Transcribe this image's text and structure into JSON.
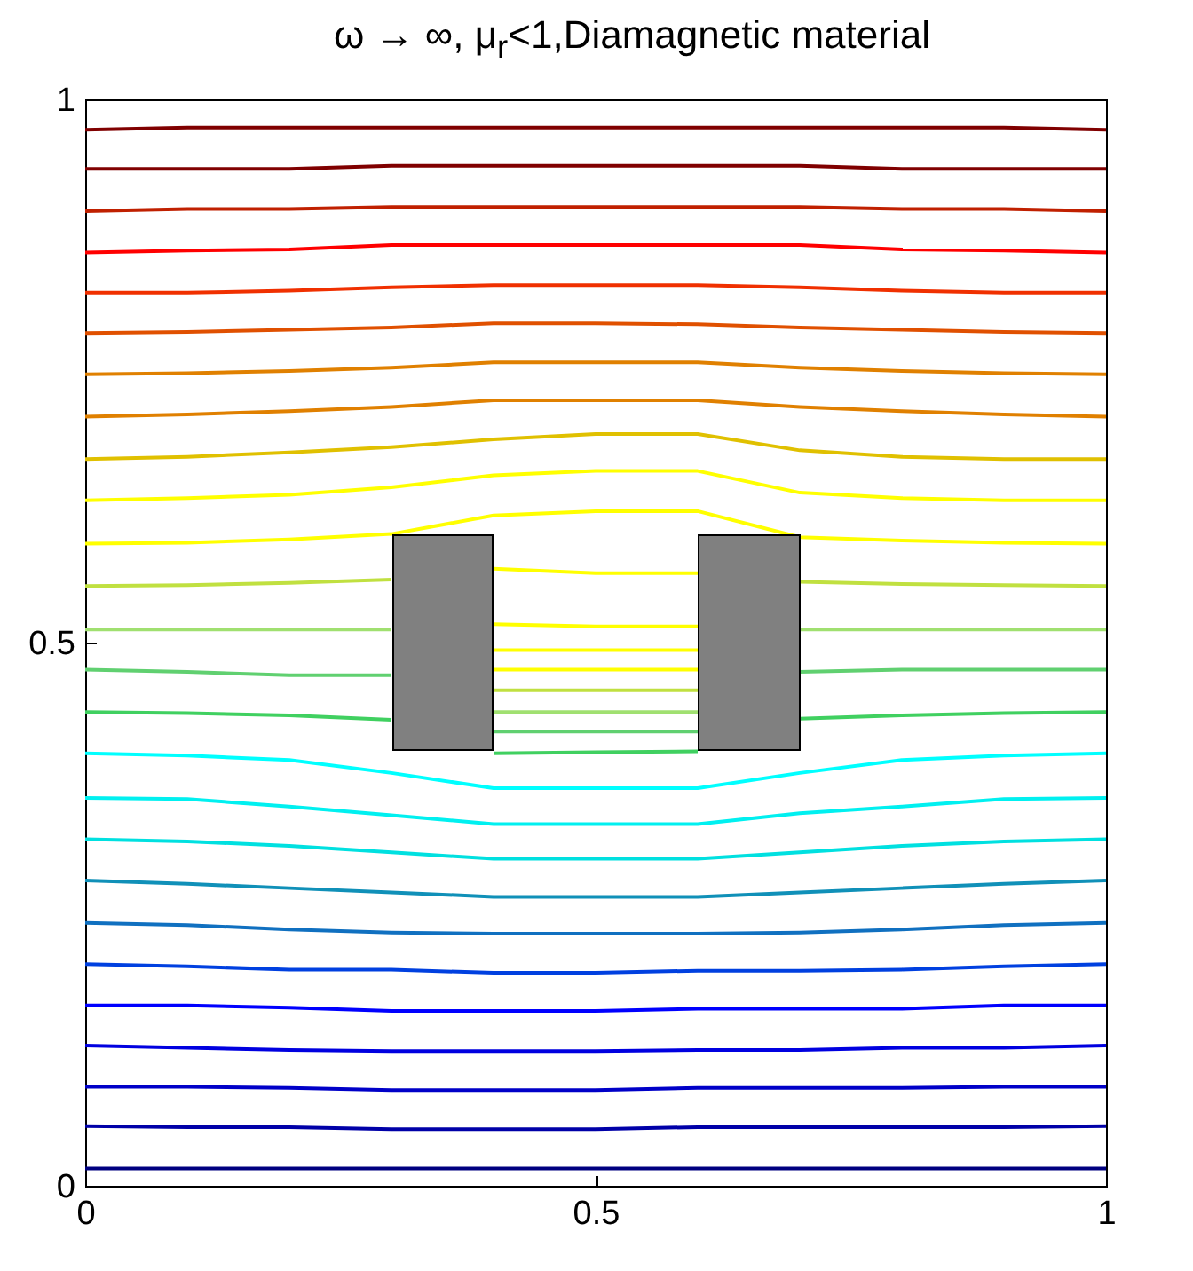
{
  "chart_data": {
    "type": "line",
    "title": "ω → ∞, μ$_{r}$<1,Diamagnetic material",
    "x": [
      0,
      0.1,
      0.2,
      0.3,
      0.4,
      0.5,
      0.6,
      0.7,
      0.8,
      0.9,
      1
    ],
    "xlim": [
      0,
      1
    ],
    "xticks": [
      0,
      0.5,
      1
    ],
    "ylim": [
      0,
      1
    ],
    "yticks": [
      0,
      0.5,
      1
    ],
    "grid": false,
    "marker": "none",
    "line_style": "solid",
    "series": [
      {
        "color": "#800000",
        "values": [
          0.972,
          0.974,
          0.974,
          0.974,
          0.974,
          0.974,
          0.974,
          0.974,
          0.974,
          0.974,
          0.972
        ]
      },
      {
        "color": "#800000",
        "values": [
          0.936,
          0.936,
          0.936,
          0.939,
          0.939,
          0.939,
          0.939,
          0.939,
          0.936,
          0.936,
          0.936
        ]
      },
      {
        "color": "#c02000",
        "values": [
          0.897,
          0.899,
          0.899,
          0.901,
          0.901,
          0.901,
          0.901,
          0.901,
          0.899,
          0.899,
          0.897
        ]
      },
      {
        "color": "#ff0000",
        "values": [
          0.859,
          0.861,
          0.862,
          0.866,
          0.866,
          0.866,
          0.866,
          0.866,
          0.862,
          0.861,
          0.859
        ]
      },
      {
        "color": "#f03000",
        "values": [
          0.822,
          0.822,
          0.824,
          0.827,
          0.829,
          0.829,
          0.829,
          0.827,
          0.824,
          0.822,
          0.822
        ]
      },
      {
        "color": "#e05000",
        "values": [
          0.785,
          0.786,
          0.788,
          0.79,
          0.794,
          0.794,
          0.793,
          0.79,
          0.788,
          0.786,
          0.785
        ]
      },
      {
        "color": "#e08000",
        "values": [
          0.747,
          0.748,
          0.75,
          0.753,
          0.758,
          0.758,
          0.758,
          0.753,
          0.75,
          0.748,
          0.747
        ]
      },
      {
        "color": "#e08000",
        "values": [
          0.708,
          0.71,
          0.713,
          0.717,
          0.723,
          0.723,
          0.723,
          0.717,
          0.713,
          0.71,
          0.708
        ]
      },
      {
        "color": "#e0c000",
        "values": [
          0.669,
          0.671,
          0.675,
          0.68,
          0.687,
          0.692,
          0.692,
          0.677,
          0.671,
          0.669,
          0.669
        ]
      },
      {
        "color": "#ffff00",
        "values": [
          0.631,
          0.633,
          0.636,
          0.643,
          0.654,
          0.658,
          0.658,
          0.638,
          0.633,
          0.631,
          0.631
        ]
      },
      {
        "color": "#ffff00",
        "values": [
          0.591,
          0.592,
          0.595,
          0.6,
          0.617,
          0.621,
          0.621,
          0.597,
          0.594,
          0.592,
          0.591
        ]
      },
      {
        "color": "#c0e040",
        "values": [
          0.552,
          0.553,
          0.555,
          0.558,
          null,
          null,
          null,
          0.556,
          0.554,
          0.553,
          0.552
        ]
      },
      {
        "color": "#a0e070",
        "values": [
          0.512,
          0.512,
          0.512,
          0.512,
          null,
          null,
          null,
          0.512,
          0.512,
          0.512,
          0.512
        ]
      },
      {
        "color": "#60d070",
        "values": [
          0.475,
          0.473,
          0.47,
          0.47,
          null,
          null,
          null,
          0.473,
          0.475,
          0.475,
          0.475
        ]
      },
      {
        "color": "#40d060",
        "values": [
          0.436,
          0.435,
          0.433,
          0.429,
          null,
          null,
          null,
          0.43,
          0.433,
          0.435,
          0.436
        ]
      },
      {
        "color": "#00ffff",
        "values": [
          0.398,
          0.396,
          0.392,
          0.38,
          0.366,
          0.366,
          0.366,
          0.38,
          0.392,
          0.396,
          0.398
        ]
      },
      {
        "color": "#00f0f0",
        "values": [
          0.357,
          0.356,
          0.349,
          0.341,
          0.333,
          0.333,
          0.333,
          0.343,
          0.349,
          0.356,
          0.357
        ]
      },
      {
        "color": "#00e0e0",
        "values": [
          0.319,
          0.317,
          0.313,
          0.307,
          0.301,
          0.301,
          0.301,
          0.307,
          0.313,
          0.317,
          0.319
        ]
      },
      {
        "color": "#1090b8",
        "values": [
          0.281,
          0.278,
          0.274,
          0.27,
          0.266,
          0.266,
          0.266,
          0.27,
          0.274,
          0.278,
          0.281
        ]
      },
      {
        "color": "#1070c0",
        "values": [
          0.242,
          0.24,
          0.236,
          0.233,
          0.232,
          0.232,
          0.232,
          0.233,
          0.236,
          0.24,
          0.242
        ]
      },
      {
        "color": "#0040e0",
        "values": [
          0.204,
          0.202,
          0.199,
          0.199,
          0.196,
          0.196,
          0.198,
          0.198,
          0.199,
          0.202,
          0.204
        ]
      },
      {
        "color": "#0000ff",
        "values": [
          0.166,
          0.166,
          0.164,
          0.161,
          0.161,
          0.161,
          0.163,
          0.163,
          0.163,
          0.166,
          0.166
        ]
      },
      {
        "color": "#0000e0",
        "values": [
          0.129,
          0.127,
          0.125,
          0.124,
          0.124,
          0.124,
          0.125,
          0.125,
          0.127,
          0.127,
          0.129
        ]
      },
      {
        "color": "#0000c8",
        "values": [
          0.091,
          0.091,
          0.09,
          0.088,
          0.088,
          0.088,
          0.09,
          0.09,
          0.09,
          0.091,
          0.091
        ]
      },
      {
        "color": "#0000a8",
        "values": [
          0.055,
          0.054,
          0.054,
          0.052,
          0.052,
          0.052,
          0.054,
          0.054,
          0.054,
          0.054,
          0.055
        ]
      },
      {
        "color": "#000080",
        "values": [
          0.016,
          0.016,
          0.016,
          0.016,
          0.016,
          0.016,
          0.016,
          0.016,
          0.016,
          0.016,
          0.016
        ]
      },
      {
        "color": "#ffff00",
        "x": [
          0.4,
          0.5,
          0.6
        ],
        "values": [
          0.568,
          0.564,
          0.564
        ]
      },
      {
        "color": "#ffff00",
        "x": [
          0.4,
          0.5,
          0.6
        ],
        "values": [
          0.517,
          0.515,
          0.515
        ]
      },
      {
        "color": "#ffff00",
        "x": [
          0.4,
          0.5,
          0.6
        ],
        "values": [
          0.493,
          0.493,
          0.493
        ]
      },
      {
        "color": "#ffff00",
        "x": [
          0.4,
          0.5,
          0.6
        ],
        "values": [
          0.475,
          0.475,
          0.475
        ]
      },
      {
        "color": "#c0e040",
        "x": [
          0.4,
          0.5,
          0.6
        ],
        "values": [
          0.456,
          0.456,
          0.456
        ]
      },
      {
        "color": "#a0e070",
        "x": [
          0.4,
          0.5,
          0.6
        ],
        "values": [
          0.436,
          0.436,
          0.436
        ]
      },
      {
        "color": "#60d070",
        "x": [
          0.4,
          0.5,
          0.6
        ],
        "values": [
          0.418,
          0.418,
          0.418
        ]
      },
      {
        "color": "#40d060",
        "x": [
          0.4,
          0.5,
          0.6
        ],
        "values": [
          0.398,
          0.399,
          0.4
        ]
      }
    ]
  }
}
